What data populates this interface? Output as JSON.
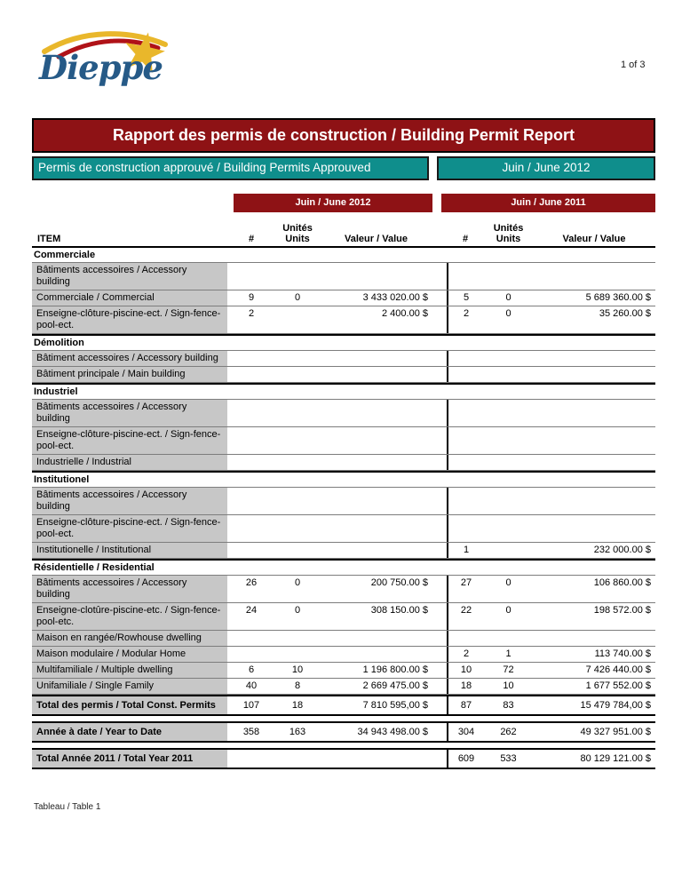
{
  "page": {
    "logo_text": "Dieppe",
    "page_number": "1 of 3",
    "footnote": "Tableau / Table 1"
  },
  "title_banner": "Rapport des permis de construction / Building Permit Report",
  "subtitle_left": "Permis de construction approuvé / Building Permits Approuved",
  "subtitle_right": "Juin / June 2012",
  "colors": {
    "maroon": "#8e1215",
    "teal": "#0f8e8c",
    "gray_cell": "#c7c7c7",
    "logo_blue": "#265a87",
    "logo_gold": "#e9b72b",
    "logo_red": "#b01218"
  },
  "table": {
    "group_headers": [
      "Juin / June 2012",
      "Juin / June 2011"
    ],
    "columns": {
      "item": "ITEM",
      "count": "#",
      "units_line1": "Unités",
      "units_line2": "Units",
      "value": "Valeur / Value"
    },
    "rows": [
      {
        "type": "section",
        "label": "Commerciale"
      },
      {
        "type": "data",
        "label": "Bâtiments accessoires / Accessory building",
        "v": [
          "",
          "",
          "",
          "",
          "",
          ""
        ]
      },
      {
        "type": "data",
        "label": "Commerciale / Commercial",
        "v": [
          "9",
          "0",
          "3 433 020.00 $",
          "5",
          "0",
          "5 689 360.00 $"
        ]
      },
      {
        "type": "data",
        "label": "Enseigne-clôture-piscine-ect. / Sign-fence-pool-ect.",
        "v": [
          "2",
          "",
          "2 400.00 $",
          "2",
          "0",
          "35 260.00 $"
        ]
      },
      {
        "type": "section",
        "label": "Démolition"
      },
      {
        "type": "data",
        "label": "Bâtiment accessoires / Accessory building",
        "v": [
          "",
          "",
          "",
          "",
          "",
          ""
        ]
      },
      {
        "type": "data",
        "label": "Bâtiment principale / Main building",
        "v": [
          "",
          "",
          "",
          "",
          "",
          ""
        ]
      },
      {
        "type": "section",
        "label": "Industriel"
      },
      {
        "type": "data",
        "label": "Bâtiments accessoires / Accessory building",
        "v": [
          "",
          "",
          "",
          "",
          "",
          ""
        ]
      },
      {
        "type": "data",
        "label": "Enseigne-clôture-piscine-ect. / Sign-fence-pool-ect.",
        "v": [
          "",
          "",
          "",
          "",
          "",
          ""
        ]
      },
      {
        "type": "data",
        "label": "Industrielle / Industrial",
        "v": [
          "",
          "",
          "",
          "",
          "",
          ""
        ]
      },
      {
        "type": "section",
        "label": "Institutionel"
      },
      {
        "type": "data",
        "label": "Bâtiments accessoires / Accessory building",
        "v": [
          "",
          "",
          "",
          "",
          "",
          ""
        ]
      },
      {
        "type": "data",
        "label": "Enseigne-clôture-piscine-ect. / Sign-fence-pool-ect.",
        "v": [
          "",
          "",
          "",
          "",
          "",
          ""
        ]
      },
      {
        "type": "data",
        "label": "Institutionelle / Institutional",
        "v": [
          "",
          "",
          "",
          "1",
          "",
          "232 000.00 $"
        ]
      },
      {
        "type": "section",
        "label": "Résidentielle / Residential"
      },
      {
        "type": "data",
        "label": "Bâtiments accessoires / Accessory building",
        "v": [
          "26",
          "0",
          "200 750.00 $",
          "27",
          "0",
          "106 860.00 $"
        ]
      },
      {
        "type": "data",
        "label": "Enseigne-clotûre-piscine-etc. / Sign-fence-pool-etc.",
        "v": [
          "24",
          "0",
          "308 150.00 $",
          "22",
          "0",
          "198 572.00 $"
        ]
      },
      {
        "type": "data",
        "label": "Maison en rangée/Rowhouse dwelling",
        "v": [
          "",
          "",
          "",
          "",
          "",
          ""
        ]
      },
      {
        "type": "data",
        "label": "Maison modulaire / Modular Home",
        "v": [
          "",
          "",
          "",
          "2",
          "1",
          "113 740.00 $"
        ]
      },
      {
        "type": "data",
        "label": "Multifamiliale / Multiple dwelling",
        "v": [
          "6",
          "10",
          "1 196 800.00 $",
          "10",
          "72",
          "7 426 440.00 $"
        ]
      },
      {
        "type": "data",
        "label": "Unifamiliale / Single Family",
        "v": [
          "40",
          "8",
          "2 669 475.00 $",
          "18",
          "10",
          "1 677 552.00 $"
        ]
      },
      {
        "type": "total",
        "label": "Total des permis / Total Const. Permits",
        "v": [
          "107",
          "18",
          "7 810 595,00 $",
          "87",
          "83",
          "15 479 784,00 $"
        ]
      },
      {
        "type": "total",
        "gap_before": true,
        "label": "Année à date / Year to Date",
        "v": [
          "358",
          "163",
          "34 943 498.00 $",
          "304",
          "262",
          "49 327 951.00 $"
        ]
      },
      {
        "type": "total",
        "gap_before": true,
        "label": "Total Année 2011 / Total Year 2011",
        "v": [
          "",
          "",
          "",
          "609",
          "533",
          "80 129 121.00 $"
        ]
      }
    ]
  }
}
